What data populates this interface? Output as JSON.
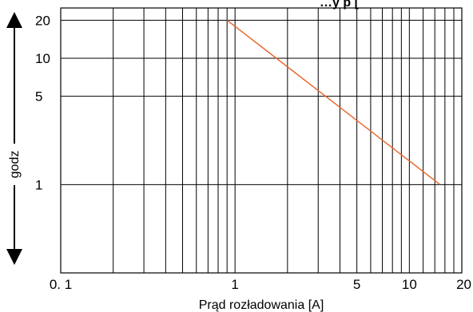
{
  "chart_data": {
    "type": "line",
    "title": "…y p [",
    "xlabel": "Prąd rozładowania [A]",
    "ylabel": "godz",
    "x_scale": "log",
    "y_scale": "log",
    "xlim": [
      0.1,
      20
    ],
    "ylim": [
      0.2,
      25
    ],
    "x_tick_labels": [
      {
        "value": 0.1,
        "label": "0. 1"
      },
      {
        "value": 1,
        "label": "1"
      },
      {
        "value": 5,
        "label": "5"
      },
      {
        "value": 10,
        "label": "10"
      },
      {
        "value": 20,
        "label": "20"
      }
    ],
    "y_tick_labels": [
      {
        "value": 20,
        "label": "20"
      },
      {
        "value": 10,
        "label": "10"
      },
      {
        "value": 5,
        "label": "5"
      },
      {
        "value": 1,
        "label": "1"
      }
    ],
    "x_grid": [
      0.1,
      0.2,
      0.3,
      0.4,
      0.5,
      0.6,
      0.7,
      0.8,
      0.9,
      1,
      2,
      3,
      4,
      5,
      6,
      7,
      8,
      9,
      10,
      12,
      14,
      16,
      18,
      20
    ],
    "y_grid": [
      20,
      10,
      5,
      1
    ],
    "grid": true,
    "series": [
      {
        "color": "#e8642a",
        "points": [
          {
            "x": 0.9,
            "y": 20
          },
          {
            "x": 15,
            "y": 1
          }
        ]
      }
    ]
  }
}
